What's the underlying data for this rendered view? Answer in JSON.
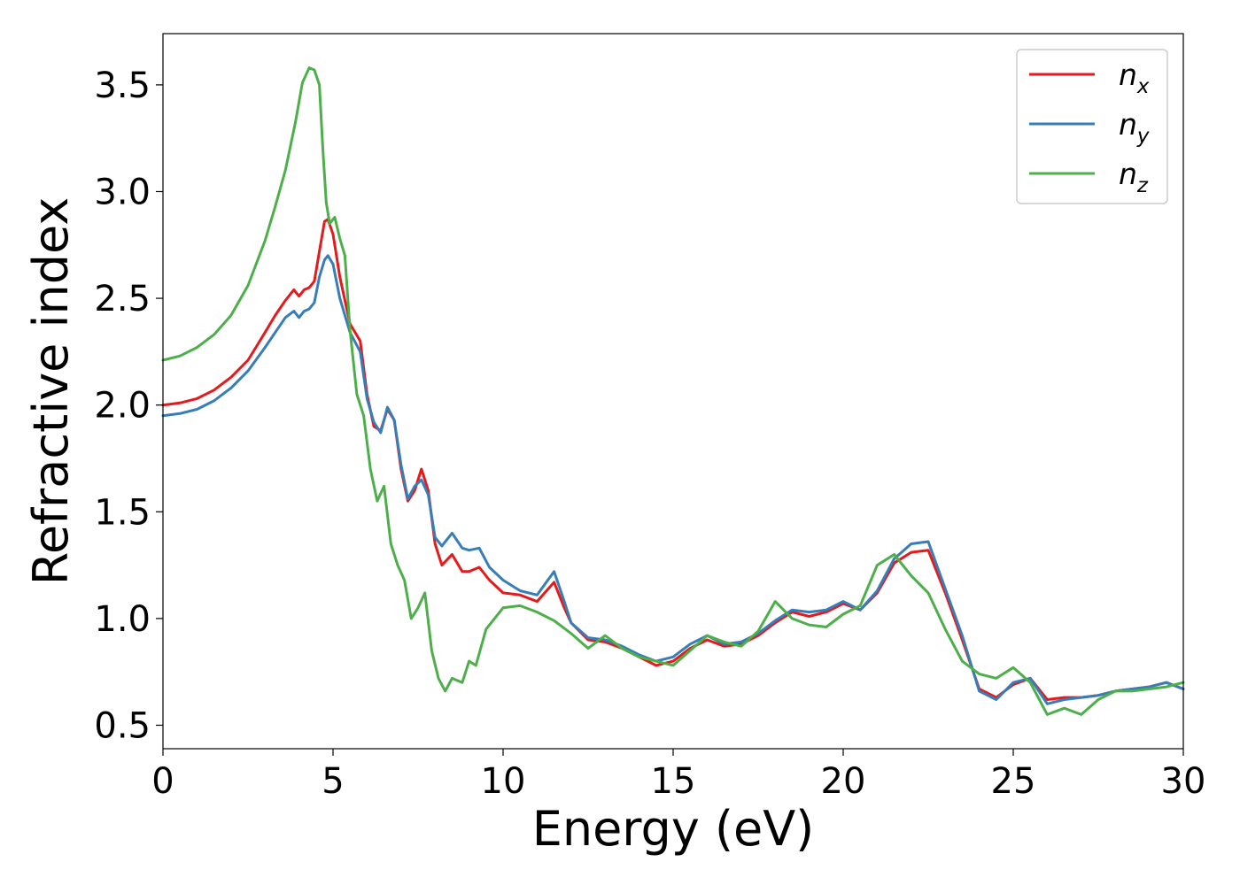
{
  "chart_data": {
    "type": "line",
    "xlabel": "Energy (eV)",
    "ylabel": "Refractive index",
    "xlim": [
      0,
      30
    ],
    "ylim": [
      0.39,
      3.74
    ],
    "xticks": [
      "0",
      "5",
      "10",
      "15",
      "20",
      "25",
      "30"
    ],
    "yticks": [
      "0.5",
      "1.0",
      "1.5",
      "2.0",
      "2.5",
      "3.0",
      "3.5"
    ],
    "grid": false,
    "legend_position": "top-right",
    "series": [
      {
        "name": "n_x",
        "legend_base": "n",
        "legend_sub": "x",
        "color": "#e41a1c",
        "x": [
          0,
          0.5,
          1,
          1.5,
          2,
          2.5,
          3,
          3.3,
          3.6,
          3.85,
          4,
          4.15,
          4.3,
          4.45,
          4.6,
          4.75,
          4.85,
          5,
          5.2,
          5.5,
          5.8,
          6,
          6.2,
          6.4,
          6.6,
          6.8,
          7,
          7.2,
          7.4,
          7.6,
          7.8,
          8,
          8.2,
          8.5,
          8.8,
          9,
          9.3,
          9.6,
          10,
          10.5,
          11,
          11.5,
          11.8,
          12,
          12.5,
          13,
          13.5,
          14,
          14.5,
          15,
          15.5,
          16,
          16.5,
          17,
          17.5,
          18,
          18.5,
          19,
          19.5,
          20,
          20.5,
          21,
          21.5,
          22,
          22.5,
          23,
          23.5,
          24,
          24.5,
          25,
          25.5,
          26,
          26.5,
          27,
          27.5,
          28,
          28.5,
          29,
          29.5,
          30
        ],
        "y": [
          2.0,
          2.01,
          2.03,
          2.07,
          2.13,
          2.21,
          2.34,
          2.42,
          2.49,
          2.54,
          2.51,
          2.54,
          2.55,
          2.58,
          2.72,
          2.86,
          2.87,
          2.8,
          2.6,
          2.38,
          2.3,
          2.05,
          1.9,
          1.88,
          1.98,
          1.93,
          1.7,
          1.55,
          1.6,
          1.7,
          1.6,
          1.35,
          1.25,
          1.3,
          1.22,
          1.22,
          1.24,
          1.18,
          1.12,
          1.11,
          1.08,
          1.17,
          1.05,
          0.98,
          0.9,
          0.89,
          0.86,
          0.82,
          0.78,
          0.8,
          0.86,
          0.9,
          0.87,
          0.88,
          0.92,
          0.98,
          1.03,
          1.01,
          1.03,
          1.07,
          1.04,
          1.12,
          1.26,
          1.31,
          1.32,
          1.12,
          0.9,
          0.67,
          0.63,
          0.69,
          0.72,
          0.62,
          0.63,
          0.63,
          0.64,
          0.66,
          0.67,
          0.68,
          0.7,
          0.67
        ]
      },
      {
        "name": "n_y",
        "legend_base": "n",
        "legend_sub": "y",
        "color": "#377eb8",
        "x": [
          0,
          0.5,
          1,
          1.5,
          2,
          2.5,
          3,
          3.3,
          3.6,
          3.85,
          4,
          4.15,
          4.3,
          4.45,
          4.6,
          4.75,
          4.85,
          5,
          5.2,
          5.5,
          5.8,
          6,
          6.2,
          6.4,
          6.6,
          6.8,
          7,
          7.2,
          7.4,
          7.6,
          7.8,
          8,
          8.2,
          8.5,
          8.8,
          9,
          9.3,
          9.6,
          10,
          10.5,
          11,
          11.5,
          11.8,
          12,
          12.5,
          13,
          13.5,
          14,
          14.5,
          15,
          15.5,
          16,
          16.5,
          17,
          17.5,
          18,
          18.5,
          19,
          19.5,
          20,
          20.5,
          21,
          21.5,
          22,
          22.5,
          23,
          23.5,
          24,
          24.5,
          25,
          25.5,
          26,
          26.5,
          27,
          27.5,
          28,
          28.5,
          29,
          29.5,
          30
        ],
        "y": [
          1.95,
          1.96,
          1.98,
          2.02,
          2.08,
          2.16,
          2.27,
          2.34,
          2.41,
          2.44,
          2.41,
          2.44,
          2.45,
          2.48,
          2.6,
          2.68,
          2.7,
          2.66,
          2.5,
          2.34,
          2.25,
          2.03,
          1.92,
          1.87,
          1.99,
          1.93,
          1.72,
          1.56,
          1.62,
          1.65,
          1.58,
          1.38,
          1.34,
          1.4,
          1.33,
          1.32,
          1.33,
          1.24,
          1.18,
          1.13,
          1.11,
          1.22,
          1.08,
          0.98,
          0.91,
          0.9,
          0.87,
          0.83,
          0.8,
          0.82,
          0.88,
          0.92,
          0.88,
          0.89,
          0.93,
          0.99,
          1.04,
          1.03,
          1.04,
          1.08,
          1.04,
          1.13,
          1.28,
          1.35,
          1.36,
          1.14,
          0.92,
          0.66,
          0.62,
          0.7,
          0.72,
          0.6,
          0.62,
          0.63,
          0.64,
          0.66,
          0.67,
          0.68,
          0.7,
          0.67
        ]
      },
      {
        "name": "n_z",
        "legend_base": "n",
        "legend_sub": "z",
        "color": "#4daf4a",
        "x": [
          0,
          0.5,
          1,
          1.5,
          2,
          2.5,
          3,
          3.3,
          3.6,
          3.9,
          4.1,
          4.3,
          4.45,
          4.6,
          4.7,
          4.8,
          4.9,
          5.05,
          5.2,
          5.35,
          5.5,
          5.7,
          5.9,
          6.1,
          6.3,
          6.5,
          6.7,
          6.9,
          7.1,
          7.3,
          7.5,
          7.7,
          7.9,
          8.1,
          8.3,
          8.5,
          8.8,
          9,
          9.2,
          9.5,
          10,
          10.5,
          11,
          11.5,
          12,
          12.5,
          13,
          13.5,
          14,
          14.5,
          15,
          15.5,
          16,
          16.5,
          17,
          17.5,
          18,
          18.5,
          19,
          19.5,
          20,
          20.5,
          21,
          21.5,
          22,
          22.5,
          23,
          23.5,
          24,
          24.5,
          25,
          25.5,
          26,
          26.5,
          27,
          27.5,
          28,
          28.5,
          29,
          29.5,
          30
        ],
        "y": [
          2.21,
          2.23,
          2.27,
          2.33,
          2.42,
          2.56,
          2.77,
          2.93,
          3.1,
          3.33,
          3.51,
          3.58,
          3.57,
          3.5,
          3.2,
          2.95,
          2.85,
          2.88,
          2.78,
          2.7,
          2.35,
          2.05,
          1.95,
          1.7,
          1.55,
          1.62,
          1.35,
          1.25,
          1.18,
          1.0,
          1.05,
          1.12,
          0.85,
          0.72,
          0.66,
          0.72,
          0.7,
          0.8,
          0.78,
          0.95,
          1.05,
          1.06,
          1.03,
          0.99,
          0.93,
          0.86,
          0.92,
          0.86,
          0.82,
          0.8,
          0.78,
          0.85,
          0.92,
          0.89,
          0.87,
          0.94,
          1.08,
          1.0,
          0.97,
          0.96,
          1.02,
          1.06,
          1.25,
          1.3,
          1.2,
          1.12,
          0.95,
          0.8,
          0.74,
          0.72,
          0.77,
          0.7,
          0.55,
          0.58,
          0.55,
          0.62,
          0.66,
          0.66,
          0.67,
          0.68,
          0.7
        ]
      }
    ]
  }
}
